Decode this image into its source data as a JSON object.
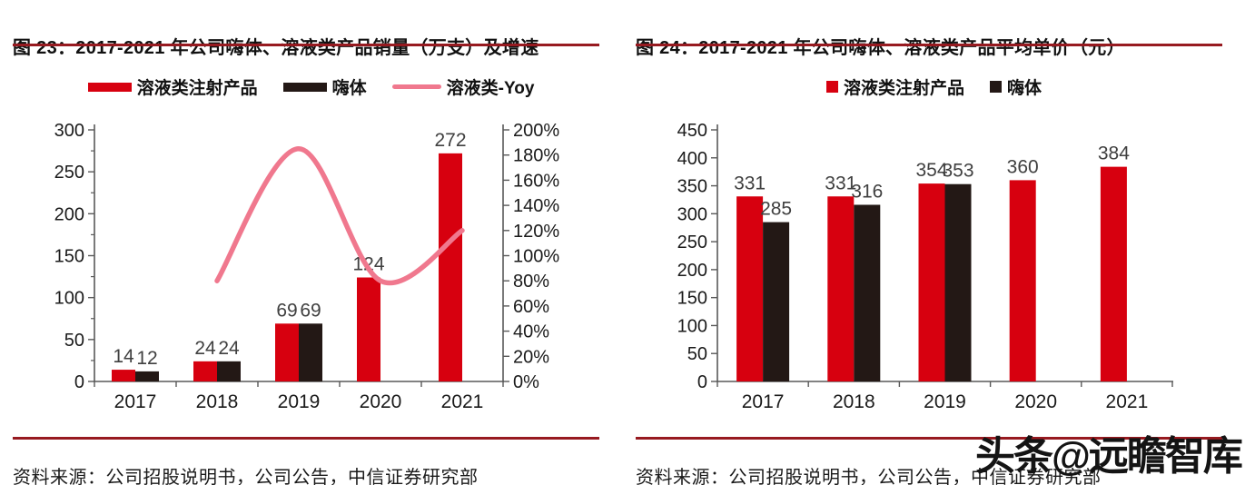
{
  "watermark": {
    "text": "头条@远瞻智库"
  },
  "colors": {
    "brand_red": "#d7000f",
    "bar_black": "#231815",
    "line_pink": "#f0788e",
    "rule_red": "#971a20",
    "axis_gray": "#595959",
    "data_label_gray": "#404040",
    "text_black": "#1a1a1a"
  },
  "figure23": {
    "title": "图 23：2017-2021 年公司嗨体、溶液类产品销量（万支）及增速",
    "source": "资料来源：公司招股说明书，公司公告，中信证券研究部"
  },
  "figure24": {
    "title": "图 24：2017-2021 年公司嗨体、溶液类产品平均单价（元）",
    "source": "资料来源：公司招股说明书，公司公告，中信证券研究部"
  },
  "chart_data": [
    {
      "type": "bar",
      "title": "2017-2021 年公司嗨体、溶液类产品销量（万支）及增速",
      "categories": [
        "2017",
        "2018",
        "2019",
        "2020",
        "2021"
      ],
      "series": [
        {
          "name": "溶液类注射产品",
          "key": "solution-injection",
          "type": "bar",
          "color": "#d7000f",
          "values": [
            14,
            24,
            69,
            124,
            272
          ]
        },
        {
          "name": "嗨体",
          "key": "hibody",
          "type": "bar",
          "color": "#231815",
          "values": [
            12,
            24,
            69,
            null,
            null
          ]
        },
        {
          "name": "溶液类-Yoy",
          "key": "solution-yoy",
          "type": "line",
          "axis": "right",
          "color": "#f0788e",
          "values": [
            null,
            80,
            185,
            80,
            120
          ]
        }
      ],
      "left_axis": {
        "min": 0,
        "max": 300,
        "step": 50,
        "ticks_top_to_bottom": [
          "300",
          "250",
          "200",
          "150",
          "100",
          "50",
          "0"
        ]
      },
      "right_axis": {
        "min": 0,
        "max": 200,
        "step": 20,
        "suffix": "%",
        "ticks_top_to_bottom": [
          "200%",
          "180%",
          "160%",
          "140%",
          "120%",
          "100%",
          "80%",
          "60%",
          "40%",
          "20%",
          "0%"
        ]
      },
      "legend_position": "top",
      "legend_style": "wide-swatch",
      "grid": false
    },
    {
      "type": "bar",
      "title": "2017-2021 年公司嗨体、溶液类产品平均单价（元）",
      "categories": [
        "2017",
        "2018",
        "2019",
        "2020",
        "2021"
      ],
      "series": [
        {
          "name": "溶液类注射产品",
          "key": "solution-injection",
          "type": "bar",
          "color": "#d7000f",
          "values": [
            331,
            331,
            354,
            360,
            384
          ]
        },
        {
          "name": "嗨体",
          "key": "hibody",
          "type": "bar",
          "color": "#231815",
          "values": [
            285,
            316,
            353,
            null,
            null
          ]
        }
      ],
      "left_axis": {
        "min": 0,
        "max": 450,
        "step": 50,
        "ticks_top_to_bottom": [
          "450",
          "400",
          "350",
          "300",
          "250",
          "200",
          "150",
          "100",
          "50",
          "0"
        ]
      },
      "legend_position": "top",
      "legend_style": "square-swatch",
      "grid": false
    }
  ]
}
